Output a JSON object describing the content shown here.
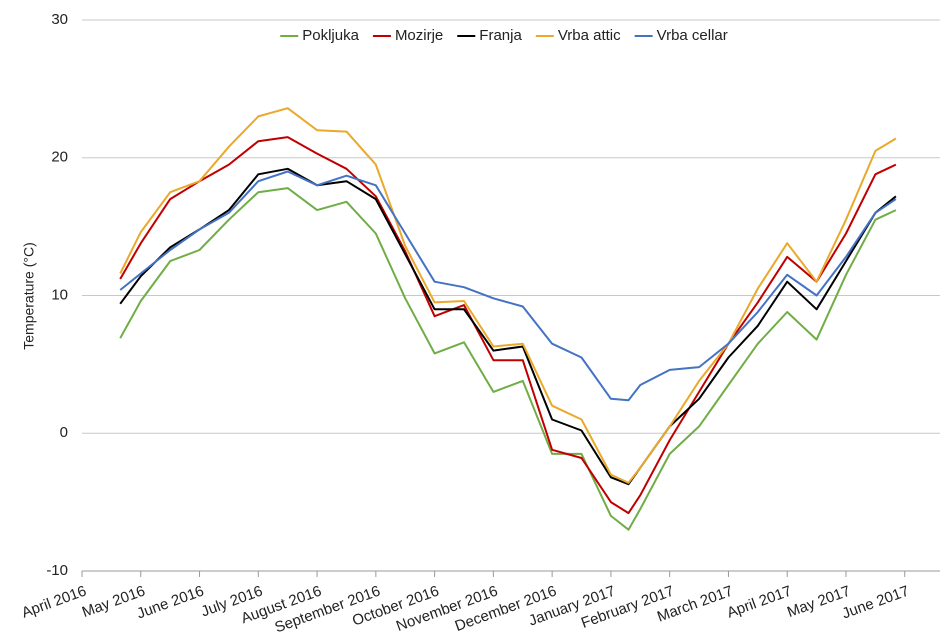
{
  "chart_data": {
    "type": "line",
    "ylabel": "Temperature (°C)",
    "x": [
      0.65,
      1.0,
      1.5,
      2.0,
      2.5,
      3.0,
      3.5,
      4.0,
      4.5,
      5.0,
      5.5,
      6.0,
      6.5,
      7.0,
      7.5,
      8.0,
      8.5,
      9.0,
      9.3,
      9.5,
      10.0,
      10.5,
      11.0,
      11.5,
      12.0,
      12.5,
      13.0,
      13.5,
      13.85
    ],
    "series": [
      {
        "name": "Pokljuka",
        "color": "#70ad47",
        "values": [
          6.9,
          9.6,
          12.5,
          13.3,
          15.5,
          17.5,
          17.8,
          16.2,
          16.8,
          14.5,
          9.8,
          5.8,
          6.6,
          3.0,
          3.8,
          -1.5,
          -1.5,
          -6.0,
          -7.0,
          -5.5,
          -1.5,
          0.5,
          3.5,
          6.5,
          8.8,
          6.8,
          11.5,
          15.5,
          16.2
        ]
      },
      {
        "name": "Mozirje",
        "color": "#c00000",
        "values": [
          11.2,
          13.8,
          17.0,
          18.3,
          19.5,
          21.2,
          21.5,
          20.3,
          19.2,
          17.2,
          13.2,
          8.5,
          9.3,
          5.3,
          5.3,
          -1.2,
          -1.8,
          -5.0,
          -5.8,
          -4.5,
          -0.5,
          3.0,
          6.5,
          9.5,
          12.8,
          11.0,
          14.5,
          18.8,
          19.5
        ]
      },
      {
        "name": "Franja",
        "color": "#000000",
        "values": [
          9.4,
          11.4,
          13.5,
          14.8,
          16.2,
          18.8,
          19.2,
          18.0,
          18.3,
          17.0,
          13.0,
          9.0,
          9.0,
          6.0,
          6.3,
          1.0,
          0.2,
          -3.2,
          -3.7,
          -2.5,
          0.5,
          2.5,
          5.5,
          7.8,
          11.0,
          9.0,
          12.5,
          16.0,
          17.2
        ]
      },
      {
        "name": "Vrba attic",
        "color": "#eaa92c",
        "values": [
          11.6,
          14.6,
          17.5,
          18.3,
          20.8,
          23.0,
          23.6,
          22.0,
          21.9,
          19.5,
          13.6,
          9.5,
          9.6,
          6.3,
          6.5,
          2.0,
          1.0,
          -3.0,
          -3.6,
          -2.5,
          0.5,
          3.8,
          6.5,
          10.5,
          13.8,
          11.0,
          15.5,
          20.5,
          21.4
        ]
      },
      {
        "name": "Vrba cellar",
        "color": "#4472c4",
        "values": [
          10.4,
          11.6,
          13.3,
          14.8,
          16.0,
          18.3,
          19.0,
          18.0,
          18.7,
          18.0,
          14.5,
          11.0,
          10.6,
          9.8,
          9.2,
          6.5,
          5.5,
          2.5,
          2.4,
          3.5,
          4.6,
          4.8,
          6.5,
          8.8,
          11.5,
          10.0,
          12.8,
          16.0,
          17.0
        ]
      }
    ],
    "xlim": [
      0,
      14.6
    ],
    "xticks": [
      {
        "value": 0,
        "label": "April 2016"
      },
      {
        "value": 1,
        "label": "May 2016"
      },
      {
        "value": 2,
        "label": "June 2016"
      },
      {
        "value": 3,
        "label": "July 2016"
      },
      {
        "value": 4,
        "label": "August 2016"
      },
      {
        "value": 5,
        "label": "September 2016"
      },
      {
        "value": 6,
        "label": "October 2016"
      },
      {
        "value": 7,
        "label": "November 2016"
      },
      {
        "value": 8,
        "label": "December 2016"
      },
      {
        "value": 9,
        "label": "January 2017"
      },
      {
        "value": 10,
        "label": "February 2017"
      },
      {
        "value": 11,
        "label": "March 2017"
      },
      {
        "value": 12,
        "label": "April 2017"
      },
      {
        "value": 13,
        "label": "May 2017"
      },
      {
        "value": 14,
        "label": "June 2017"
      }
    ],
    "ylim": [
      -10,
      30
    ],
    "yticks": [
      -10,
      0,
      10,
      20,
      30
    ],
    "grid": true,
    "legend": "top"
  }
}
